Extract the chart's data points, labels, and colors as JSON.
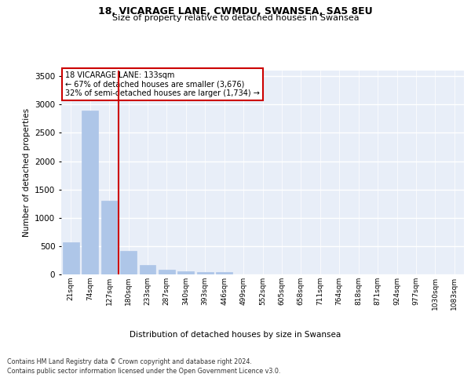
{
  "title_line1": "18, VICARAGE LANE, CWMDU, SWANSEA, SA5 8EU",
  "title_line2": "Size of property relative to detached houses in Swansea",
  "xlabel": "Distribution of detached houses by size in Swansea",
  "ylabel": "Number of detached properties",
  "categories": [
    "21sqm",
    "74sqm",
    "127sqm",
    "180sqm",
    "233sqm",
    "287sqm",
    "340sqm",
    "393sqm",
    "446sqm",
    "499sqm",
    "552sqm",
    "605sqm",
    "658sqm",
    "711sqm",
    "764sqm",
    "818sqm",
    "871sqm",
    "924sqm",
    "977sqm",
    "1030sqm",
    "1083sqm"
  ],
  "values": [
    570,
    2900,
    1300,
    415,
    160,
    80,
    50,
    45,
    45,
    0,
    0,
    0,
    0,
    0,
    0,
    0,
    0,
    0,
    0,
    0,
    0
  ],
  "bar_color": "#aec6e8",
  "bar_edge_color": "#aec6e8",
  "vline_x_index": 2,
  "vline_color": "#cc0000",
  "annotation_title": "18 VICARAGE LANE: 133sqm",
  "annotation_line2": "← 67% of detached houses are smaller (3,676)",
  "annotation_line3": "32% of semi-detached houses are larger (1,734) →",
  "annotation_box_color": "#ffffff",
  "annotation_box_edge": "#cc0000",
  "ylim": [
    0,
    3600
  ],
  "yticks": [
    0,
    500,
    1000,
    1500,
    2000,
    2500,
    3000,
    3500
  ],
  "bg_color": "#e8eef8",
  "footer_line1": "Contains HM Land Registry data © Crown copyright and database right 2024.",
  "footer_line2": "Contains public sector information licensed under the Open Government Licence v3.0."
}
